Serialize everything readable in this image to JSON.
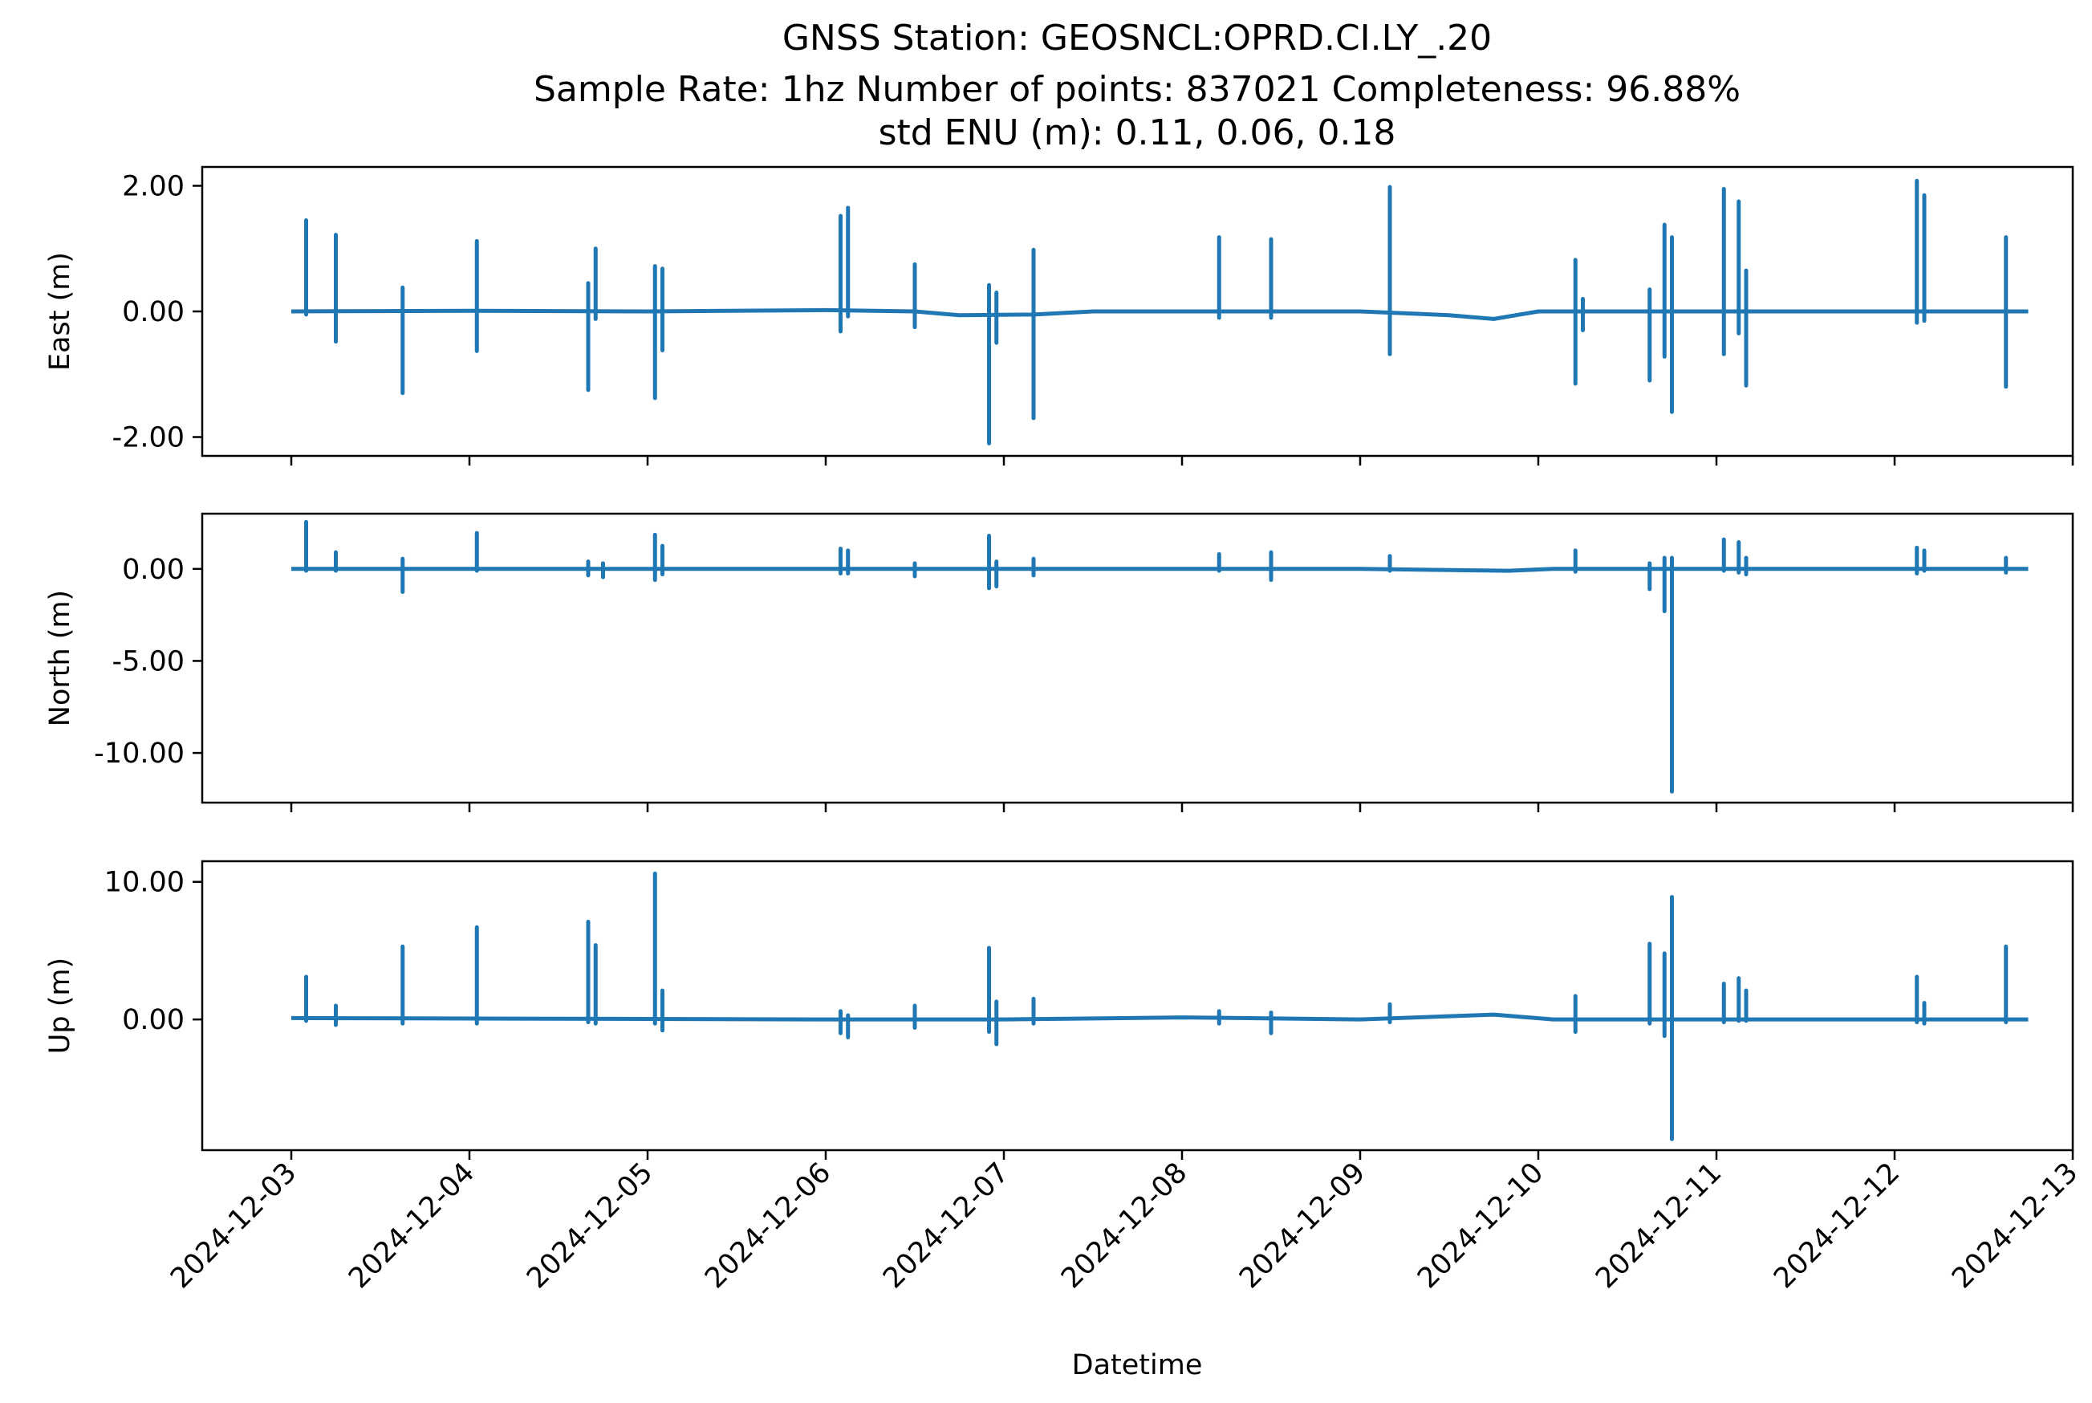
{
  "title": {
    "line1": "GNSS Station: GEOSNCL:OPRD.CI.LY_.20",
    "line2": "Sample Rate: 1hz   Number of points: 837021    Completeness:  96.88%",
    "line3": "std ENU (m):  0.11, 0.06, 0.18"
  },
  "xlabel": "Datetime",
  "colors": {
    "series": "#1f77b4",
    "axes": "#000000"
  },
  "chart_data": [
    {
      "type": "line",
      "ylabel": "East (m)",
      "ylim": [
        -2.3,
        2.3
      ],
      "yticks": [
        2.0,
        0.0,
        -2.0
      ],
      "ytick_labels": [
        "2.00",
        "0.00",
        "-2.00"
      ],
      "xlim": [
        "2024-12-02T12:00",
        "2024-12-13T00:00"
      ],
      "grid": false,
      "baseline": [
        [
          "2024-12-03T00:00",
          0.0
        ],
        [
          "2024-12-04T00:00",
          0.01
        ],
        [
          "2024-12-05T00:00",
          0.0
        ],
        [
          "2024-12-06T00:00",
          0.02
        ],
        [
          "2024-12-06T12:00",
          0.0
        ],
        [
          "2024-12-06T18:00",
          -0.06
        ],
        [
          "2024-12-07T04:00",
          -0.05
        ],
        [
          "2024-12-07T12:00",
          0.0
        ],
        [
          "2024-12-08T00:00",
          0.0
        ],
        [
          "2024-12-09T00:00",
          0.0
        ],
        [
          "2024-12-09T12:00",
          -0.06
        ],
        [
          "2024-12-09T18:00",
          -0.12
        ],
        [
          "2024-12-10T00:00",
          0.0
        ],
        [
          "2024-12-11T00:00",
          0.0
        ],
        [
          "2024-12-12T00:00",
          0.0
        ],
        [
          "2024-12-12T18:00",
          0.0
        ]
      ],
      "spikes": [
        [
          "2024-12-03T02:00",
          1.45,
          -0.05
        ],
        [
          "2024-12-03T06:00",
          1.22,
          -0.48
        ],
        [
          "2024-12-03T15:00",
          0.38,
          -1.3
        ],
        [
          "2024-12-04T01:00",
          1.12,
          -0.63
        ],
        [
          "2024-12-04T16:00",
          0.45,
          -1.25
        ],
        [
          "2024-12-04T17:00",
          1.0,
          -0.12
        ],
        [
          "2024-12-05T01:00",
          0.72,
          -1.38
        ],
        [
          "2024-12-05T02:00",
          0.68,
          -0.62
        ],
        [
          "2024-12-06T02:00",
          1.52,
          -0.32
        ],
        [
          "2024-12-06T03:00",
          1.65,
          -0.08
        ],
        [
          "2024-12-06T12:00",
          0.75,
          -0.25
        ],
        [
          "2024-12-06T22:00",
          0.42,
          -2.1
        ],
        [
          "2024-12-06T23:00",
          0.3,
          -0.5
        ],
        [
          "2024-12-07T04:00",
          0.98,
          -1.7
        ],
        [
          "2024-12-08T05:00",
          1.18,
          -0.1
        ],
        [
          "2024-12-08T12:00",
          1.15,
          -0.1
        ],
        [
          "2024-12-09T04:00",
          1.98,
          -0.68
        ],
        [
          "2024-12-10T05:00",
          0.82,
          -1.15
        ],
        [
          "2024-12-10T06:00",
          0.2,
          -0.3
        ],
        [
          "2024-12-10T15:00",
          0.35,
          -1.1
        ],
        [
          "2024-12-10T17:00",
          1.38,
          -0.72
        ],
        [
          "2024-12-10T18:00",
          1.18,
          -1.6
        ],
        [
          "2024-12-11T01:00",
          1.95,
          -0.68
        ],
        [
          "2024-12-11T03:00",
          1.75,
          -0.35
        ],
        [
          "2024-12-11T04:00",
          0.65,
          -1.18
        ],
        [
          "2024-12-12T03:00",
          2.08,
          -0.18
        ],
        [
          "2024-12-12T04:00",
          1.85,
          -0.15
        ],
        [
          "2024-12-12T15:00",
          1.18,
          -1.2
        ]
      ]
    },
    {
      "type": "line",
      "ylabel": "North (m)",
      "ylim": [
        -12.7,
        3.0
      ],
      "yticks": [
        0.0,
        -5.0,
        -10.0
      ],
      "ytick_labels": [
        "0.00",
        "-5.00",
        "-10.00"
      ],
      "xlim": [
        "2024-12-02T12:00",
        "2024-12-13T00:00"
      ],
      "grid": false,
      "baseline": [
        [
          "2024-12-03T00:00",
          0.0
        ],
        [
          "2024-12-06T00:00",
          0.0
        ],
        [
          "2024-12-09T00:00",
          0.0
        ],
        [
          "2024-12-09T20:00",
          -0.1
        ],
        [
          "2024-12-10T02:00",
          0.0
        ],
        [
          "2024-12-12T18:00",
          0.0
        ]
      ],
      "spikes": [
        [
          "2024-12-03T02:00",
          2.55,
          -0.1
        ],
        [
          "2024-12-03T06:00",
          0.9,
          -0.1
        ],
        [
          "2024-12-03T15:00",
          0.55,
          -1.25
        ],
        [
          "2024-12-04T01:00",
          1.95,
          -0.1
        ],
        [
          "2024-12-04T16:00",
          0.4,
          -0.35
        ],
        [
          "2024-12-04T18:00",
          0.3,
          -0.45
        ],
        [
          "2024-12-05T01:00",
          1.85,
          -0.6
        ],
        [
          "2024-12-05T02:00",
          1.25,
          -0.3
        ],
        [
          "2024-12-06T02:00",
          1.1,
          -0.25
        ],
        [
          "2024-12-06T03:00",
          1.0,
          -0.25
        ],
        [
          "2024-12-06T12:00",
          0.3,
          -0.4
        ],
        [
          "2024-12-06T22:00",
          1.8,
          -1.05
        ],
        [
          "2024-12-06T23:00",
          0.4,
          -0.95
        ],
        [
          "2024-12-07T04:00",
          0.55,
          -0.35
        ],
        [
          "2024-12-08T05:00",
          0.8,
          -0.1
        ],
        [
          "2024-12-08T12:00",
          0.9,
          -0.6
        ],
        [
          "2024-12-09T04:00",
          0.7,
          -0.1
        ],
        [
          "2024-12-10T05:00",
          1.0,
          -0.15
        ],
        [
          "2024-12-10T15:00",
          0.3,
          -1.1
        ],
        [
          "2024-12-10T17:00",
          0.6,
          -2.3
        ],
        [
          "2024-12-10T18:00",
          0.6,
          -12.1
        ],
        [
          "2024-12-11T01:00",
          1.6,
          -0.1
        ],
        [
          "2024-12-11T03:00",
          1.45,
          -0.2
        ],
        [
          "2024-12-11T04:00",
          0.6,
          -0.3
        ],
        [
          "2024-12-12T03:00",
          1.15,
          -0.25
        ],
        [
          "2024-12-12T04:00",
          1.0,
          -0.1
        ],
        [
          "2024-12-12T15:00",
          0.6,
          -0.2
        ]
      ]
    },
    {
      "type": "line",
      "ylabel": "Up (m)",
      "ylim": [
        -9.5,
        11.5
      ],
      "yticks": [
        10.0,
        0.0
      ],
      "ytick_labels": [
        "10.00",
        "0.00"
      ],
      "xlim": [
        "2024-12-02T12:00",
        "2024-12-13T00:00"
      ],
      "grid": false,
      "baseline": [
        [
          "2024-12-03T00:00",
          0.1
        ],
        [
          "2024-12-06T00:00",
          0.0
        ],
        [
          "2024-12-07T00:00",
          0.0
        ],
        [
          "2024-12-08T00:00",
          0.15
        ],
        [
          "2024-12-09T00:00",
          0.0
        ],
        [
          "2024-12-09T18:00",
          0.35
        ],
        [
          "2024-12-10T02:00",
          0.0
        ],
        [
          "2024-12-12T18:00",
          0.0
        ]
      ],
      "spikes": [
        [
          "2024-12-03T02:00",
          3.1,
          -0.1
        ],
        [
          "2024-12-03T06:00",
          1.0,
          -0.4
        ],
        [
          "2024-12-03T15:00",
          5.3,
          -0.3
        ],
        [
          "2024-12-04T01:00",
          6.7,
          -0.3
        ],
        [
          "2024-12-04T16:00",
          7.1,
          -0.2
        ],
        [
          "2024-12-04T17:00",
          5.4,
          -0.3
        ],
        [
          "2024-12-05T01:00",
          10.6,
          -0.3
        ],
        [
          "2024-12-05T02:00",
          2.1,
          -0.8
        ],
        [
          "2024-12-06T02:00",
          0.6,
          -1.0
        ],
        [
          "2024-12-06T03:00",
          0.3,
          -1.3
        ],
        [
          "2024-12-06T12:00",
          1.0,
          -0.6
        ],
        [
          "2024-12-06T22:00",
          5.2,
          -0.9
        ],
        [
          "2024-12-06T23:00",
          1.3,
          -1.8
        ],
        [
          "2024-12-07T04:00",
          1.5,
          -0.3
        ],
        [
          "2024-12-08T05:00",
          0.6,
          -0.3
        ],
        [
          "2024-12-08T12:00",
          0.5,
          -1.0
        ],
        [
          "2024-12-09T04:00",
          1.1,
          -0.2
        ],
        [
          "2024-12-10T05:00",
          1.7,
          -0.9
        ],
        [
          "2024-12-10T15:00",
          5.5,
          -0.3
        ],
        [
          "2024-12-10T17:00",
          4.8,
          -1.2
        ],
        [
          "2024-12-10T18:00",
          8.9,
          -8.7
        ],
        [
          "2024-12-11T01:00",
          2.6,
          -0.2
        ],
        [
          "2024-12-11T03:00",
          3.0,
          -0.1
        ],
        [
          "2024-12-11T04:00",
          2.1,
          -0.1
        ],
        [
          "2024-12-12T03:00",
          3.1,
          -0.2
        ],
        [
          "2024-12-12T04:00",
          1.2,
          -0.3
        ],
        [
          "2024-12-12T15:00",
          5.3,
          -0.2
        ]
      ]
    }
  ],
  "xticks": [
    {
      "date": "2024-12-03",
      "label": "2024-12-03"
    },
    {
      "date": "2024-12-04",
      "label": "2024-12-04"
    },
    {
      "date": "2024-12-05",
      "label": "2024-12-05"
    },
    {
      "date": "2024-12-06",
      "label": "2024-12-06"
    },
    {
      "date": "2024-12-07",
      "label": "2024-12-07"
    },
    {
      "date": "2024-12-08",
      "label": "2024-12-08"
    },
    {
      "date": "2024-12-09",
      "label": "2024-12-09"
    },
    {
      "date": "2024-12-10",
      "label": "2024-12-10"
    },
    {
      "date": "2024-12-11",
      "label": "2024-12-11"
    },
    {
      "date": "2024-12-12",
      "label": "2024-12-12"
    },
    {
      "date": "2024-12-13",
      "label": "2024-12-13"
    }
  ]
}
